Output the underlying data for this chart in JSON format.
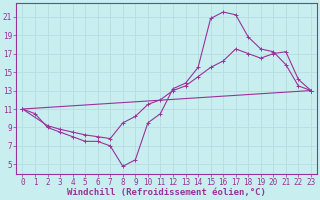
{
  "background_color": "#c8eef0",
  "grid_color": "#b8dde0",
  "line_color": "#993399",
  "xlabel": "Windchill (Refroidissement éolien,°C)",
  "xlabel_fontsize": 6.5,
  "tick_fontsize": 5.5,
  "xlim": [
    -0.5,
    23.5
  ],
  "ylim": [
    4.0,
    22.5
  ],
  "yticks": [
    5,
    7,
    9,
    11,
    13,
    15,
    17,
    19,
    21
  ],
  "xticks": [
    0,
    1,
    2,
    3,
    4,
    5,
    6,
    7,
    8,
    9,
    10,
    11,
    12,
    13,
    14,
    15,
    16,
    17,
    18,
    19,
    20,
    21,
    22,
    23
  ],
  "line1_x": [
    0,
    1,
    2,
    3,
    4,
    5,
    6,
    7,
    8,
    9,
    10,
    11,
    12,
    13,
    14,
    15,
    16,
    17,
    18,
    19,
    20,
    21,
    22,
    23
  ],
  "line1_y": [
    11.0,
    10.5,
    9.0,
    8.5,
    8.0,
    7.5,
    7.5,
    7.0,
    4.8,
    5.5,
    9.5,
    10.5,
    13.2,
    13.8,
    15.5,
    20.8,
    21.5,
    21.2,
    18.8,
    17.5,
    17.2,
    15.8,
    13.5,
    13.0
  ],
  "line2_x": [
    0,
    2,
    3,
    4,
    5,
    6,
    7,
    8,
    9,
    10,
    11,
    12,
    13,
    14,
    15,
    16,
    17,
    18,
    19,
    20,
    21,
    22,
    23
  ],
  "line2_y": [
    11.0,
    9.2,
    8.8,
    8.5,
    8.2,
    8.0,
    7.8,
    9.5,
    10.2,
    11.5,
    12.0,
    13.0,
    13.5,
    14.5,
    15.5,
    16.2,
    17.5,
    17.0,
    16.5,
    17.0,
    17.2,
    14.2,
    13.0
  ],
  "line3_x": [
    0,
    23
  ],
  "line3_y": [
    11.0,
    13.0
  ],
  "marker_size": 2.5
}
